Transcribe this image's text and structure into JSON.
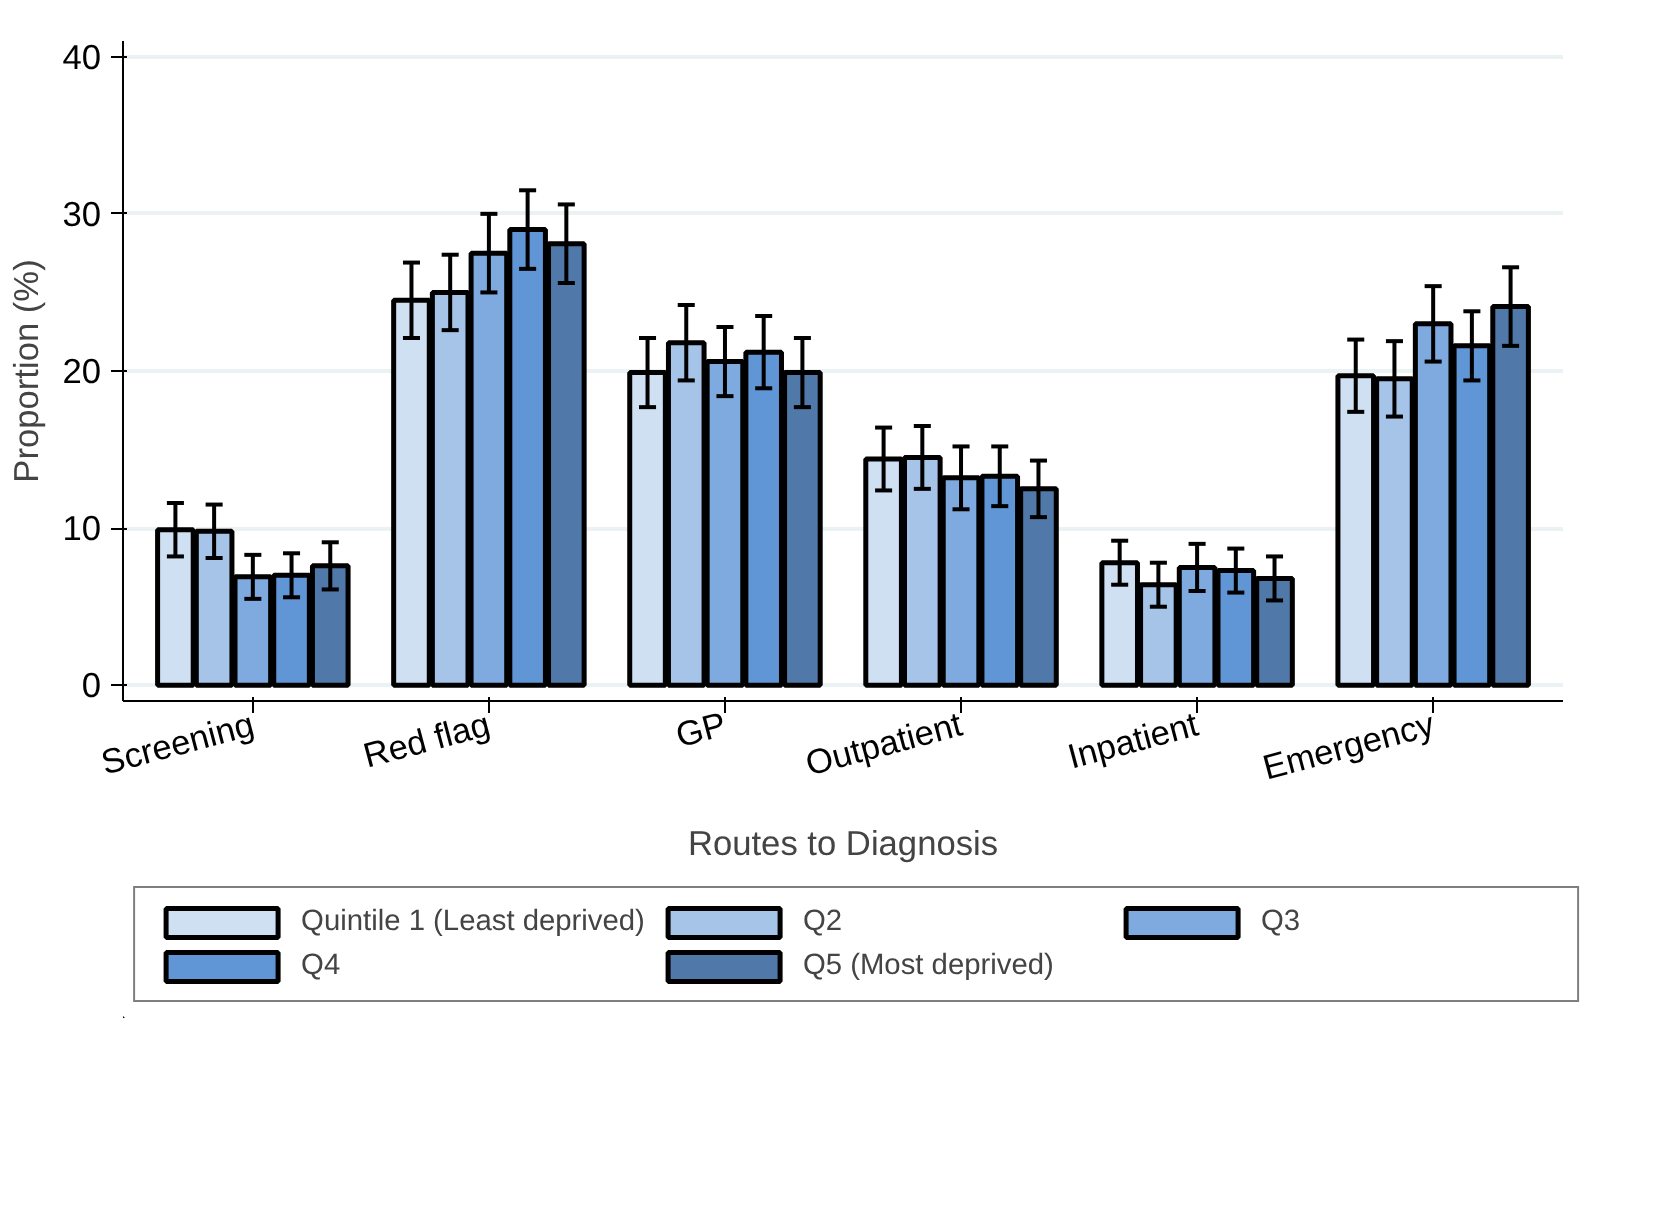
{
  "chart_data": {
    "type": "bar",
    "xlabel": "Routes to Diagnosis",
    "ylabel": "Proportion (%)",
    "categories": [
      "Screening",
      "Red flag",
      "GP",
      "Outpatient",
      "Inpatient",
      "Emergency"
    ],
    "series": [
      {
        "name": "Quintile 1 (Least deprived)",
        "color": "#d0e0f3",
        "values": [
          9.9,
          24.5,
          19.9,
          14.4,
          7.8,
          19.7
        ],
        "errors": [
          1.7,
          2.4,
          2.2,
          2.0,
          1.4,
          2.3
        ]
      },
      {
        "name": "Q2",
        "color": "#a5c4e8",
        "values": [
          9.8,
          25.0,
          21.8,
          14.5,
          6.4,
          19.5
        ],
        "errors": [
          1.7,
          2.4,
          2.4,
          2.0,
          1.4,
          2.4
        ]
      },
      {
        "name": "Q3",
        "color": "#7eaadf",
        "values": [
          6.9,
          27.5,
          20.6,
          13.2,
          7.5,
          23.0
        ],
        "errors": [
          1.4,
          2.5,
          2.2,
          2.0,
          1.5,
          2.4
        ]
      },
      {
        "name": "Q4",
        "color": "#6095d6",
        "values": [
          7.0,
          29.0,
          21.2,
          13.3,
          7.3,
          21.6
        ],
        "errors": [
          1.4,
          2.5,
          2.3,
          1.9,
          1.4,
          2.2
        ]
      },
      {
        "name": "Q5 (Most deprived)",
        "color": "#5078a8",
        "values": [
          7.6,
          28.1,
          19.9,
          12.5,
          6.8,
          24.1
        ],
        "errors": [
          1.5,
          2.5,
          2.2,
          1.8,
          1.4,
          2.5
        ]
      }
    ],
    "ylim": [
      -1,
      41
    ],
    "yticks": [
      0,
      10,
      20,
      30,
      40
    ],
    "grid": "y",
    "legend": "bottom"
  }
}
